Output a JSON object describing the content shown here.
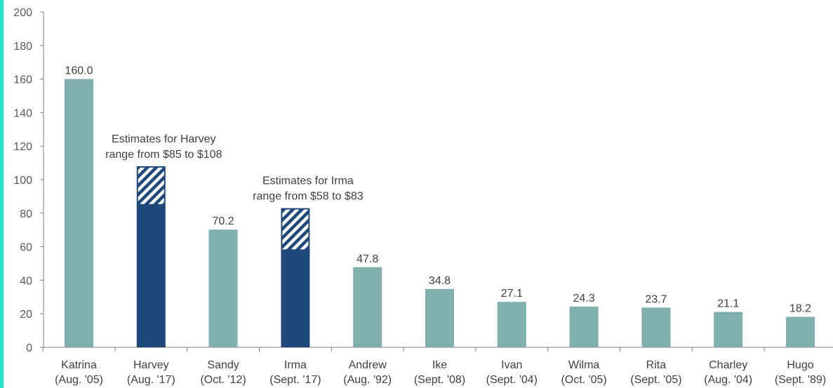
{
  "colors": {
    "accent": "#1ee3cf",
    "actual": "#7fb0ad",
    "estimate": "#1f497d",
    "axis": "#7f7f7f",
    "text": "#404040"
  },
  "chart_data": {
    "type": "bar",
    "title": "",
    "xlabel": "",
    "ylabel": "",
    "ylim": [
      0,
      200
    ],
    "yticks": [
      0,
      20,
      40,
      60,
      80,
      100,
      120,
      140,
      160,
      180,
      200
    ],
    "grid": false,
    "categories": [
      {
        "name": "Katrina",
        "date": "(Aug. '05)"
      },
      {
        "name": "Harvey",
        "date": "(Aug. '17)"
      },
      {
        "name": "Sandy",
        "date": "(Oct. '12)"
      },
      {
        "name": "Irma",
        "date": "(Sept. '17)"
      },
      {
        "name": "Andrew",
        "date": "(Aug. '92)"
      },
      {
        "name": "Ike",
        "date": "(Sept. '08)"
      },
      {
        "name": "Ivan",
        "date": "(Sept. '04)"
      },
      {
        "name": "Wilma",
        "date": "(Oct. '05)"
      },
      {
        "name": "Rita",
        "date": "(Sept. '05)"
      },
      {
        "name": "Charley",
        "date": "(Aug. '04)"
      },
      {
        "name": "Hugo",
        "date": "(Sept. '89)"
      }
    ],
    "values": [
      160.0,
      null,
      70.2,
      null,
      47.8,
      34.8,
      27.1,
      24.3,
      23.7,
      21.1,
      18.2
    ],
    "value_labels": [
      "160.0",
      "",
      "70.2",
      "",
      "47.8",
      "34.8",
      "27.1",
      "24.3",
      "23.7",
      "21.1",
      "18.2"
    ],
    "estimate_ranges": [
      {
        "category_index": 1,
        "low": 85,
        "high": 108
      },
      {
        "category_index": 3,
        "low": 58,
        "high": 83
      }
    ],
    "annotations": [
      {
        "category_index": 1,
        "lines": [
          "Estimates for Harvey",
          "range from $85 to $108"
        ]
      },
      {
        "category_index": 3,
        "lines": [
          "Estimates for Irma",
          "range from $58 to $83"
        ]
      }
    ]
  }
}
